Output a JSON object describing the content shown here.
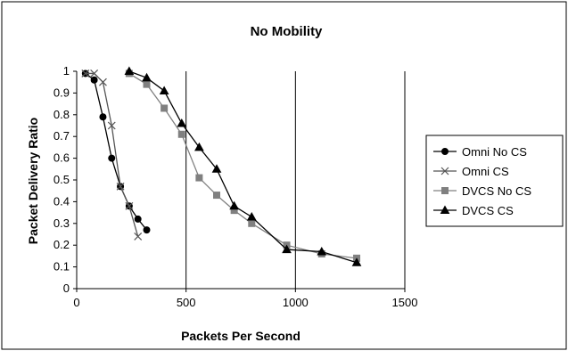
{
  "chart_data": {
    "type": "line",
    "title": "No Mobility",
    "xlabel": "Packets Per Second",
    "ylabel": "Packet Delivery Ratio",
    "xlim": [
      0,
      1500
    ],
    "ylim": [
      0,
      1
    ],
    "xticks": [
      0,
      500,
      1000,
      1500
    ],
    "yticks": [
      0,
      0.1,
      0.2,
      0.3,
      0.4,
      0.5,
      0.6,
      0.7,
      0.8,
      0.9,
      1
    ],
    "xtick_labels": [
      "0",
      "500",
      "1000",
      "1500"
    ],
    "ytick_labels": [
      "0",
      "0.1",
      "0.2",
      "0.3",
      "0.4",
      "0.5",
      "0.6",
      "0.7",
      "0.8",
      "0.9",
      "1"
    ],
    "grid": "vertical",
    "legend_position": "right",
    "series": [
      {
        "name": "Omni No CS",
        "marker": "circle",
        "color": "#000000",
        "x": [
          40,
          80,
          120,
          160,
          200,
          240,
          280,
          320
        ],
        "y": [
          0.99,
          0.96,
          0.79,
          0.6,
          0.47,
          0.38,
          0.32,
          0.27
        ]
      },
      {
        "name": "Omni CS",
        "marker": "x",
        "color": "#555555",
        "x": [
          40,
          80,
          120,
          160,
          200,
          240,
          280
        ],
        "y": [
          0.99,
          0.99,
          0.95,
          0.75,
          0.47,
          0.38,
          0.24
        ]
      },
      {
        "name": "DVCS No CS",
        "marker": "square",
        "color": "#808080",
        "x": [
          240,
          320,
          400,
          480,
          560,
          640,
          720,
          800,
          960,
          1120,
          1280
        ],
        "y": [
          0.99,
          0.94,
          0.83,
          0.71,
          0.51,
          0.43,
          0.36,
          0.3,
          0.2,
          0.16,
          0.14
        ]
      },
      {
        "name": "DVCS CS",
        "marker": "triangle",
        "color": "#000000",
        "x": [
          240,
          320,
          400,
          480,
          560,
          640,
          720,
          800,
          960,
          1120,
          1280
        ],
        "y": [
          1.0,
          0.97,
          0.91,
          0.76,
          0.65,
          0.55,
          0.38,
          0.33,
          0.18,
          0.17,
          0.12
        ]
      }
    ]
  }
}
